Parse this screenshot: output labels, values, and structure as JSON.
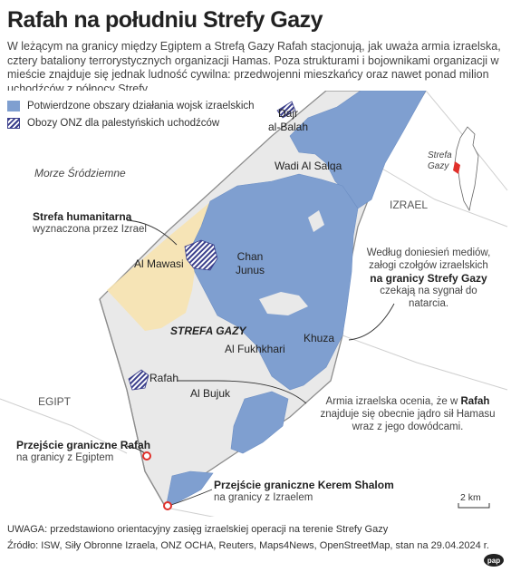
{
  "title": "Rafah na południu Strefy Gazy",
  "intro": "W leżącym na granicy między Egiptem a Strefą Gazy Rafah stacjonują, jak uważa armia izraelska, cztery bataliony terrorystycznych organizacji Hamas. Poza strukturami i bojownikami organizacji w mieście znajduje się jednak ludność cywilna: przedwojenni mieszkańcy oraz nawet ponad milion uchodźców z północy Strefy.",
  "legend": {
    "confirmed": "Potwierdzone obszary działania wojsk izraelskich",
    "camps": "Obozy ONZ dla palestyńskich uchodźców"
  },
  "places": {
    "dajr": [
      "Dajr",
      "al-Balah"
    ],
    "wadi": "Wadi Al Salqa",
    "sea": "Morze Śródziemne",
    "israel": "IZRAEL",
    "mawasi": "Al Mawasi",
    "chan": [
      "Chan",
      "Junus"
    ],
    "strefa": "STREFA GAZY",
    "fukhkhari": "Al Fukhkhari",
    "khuza": "Khuza",
    "rafah": "Rafah",
    "bujuk": "Al Bujuk",
    "egipt": "EGIPT",
    "inset": [
      "Strefa",
      "Gazy"
    ]
  },
  "callouts": {
    "humanitarian_head": "Strefa humanitarna",
    "humanitarian_sub": "wyznaczona przez Izrael",
    "tanks_1": "Według doniesień mediów,",
    "tanks_2": "załogi czołgów izraelskich",
    "tanks_3": "na granicy Strefy Gazy",
    "tanks_4": "czekają na sygnał do natarcia.",
    "army_1": "Armia izraelska ocenia, że w",
    "army_rafah": "Rafah",
    "army_2": "znajduje się obecnie jądro sił Hamasu",
    "army_3": "wraz z jego dowódcami.",
    "crossing_rafah_head": "Przejście graniczne Rafah",
    "crossing_rafah_sub": "na granicy z Egiptem",
    "crossing_ks_head": "Przejście graniczne Kerem Shalom",
    "crossing_ks_sub": "na granicy z Izraelem"
  },
  "scale": "2 km",
  "note": "UWAGA: przedstawiono orientacyjny zasięg izraelskiej operacji na terenie Strefy Gazy",
  "source": "Źródło: ISW, Siły Obronne Izraela, ONZ OCHA, Reuters, Maps4News, OpenStreetMap, stan na 29.04.2024 r.",
  "logo": "pap",
  "colors": {
    "operations": "#7f9fd0",
    "humanitarian": "#f7e3b0",
    "camps": "#3b3f8c",
    "crossing": "#e0302a"
  }
}
